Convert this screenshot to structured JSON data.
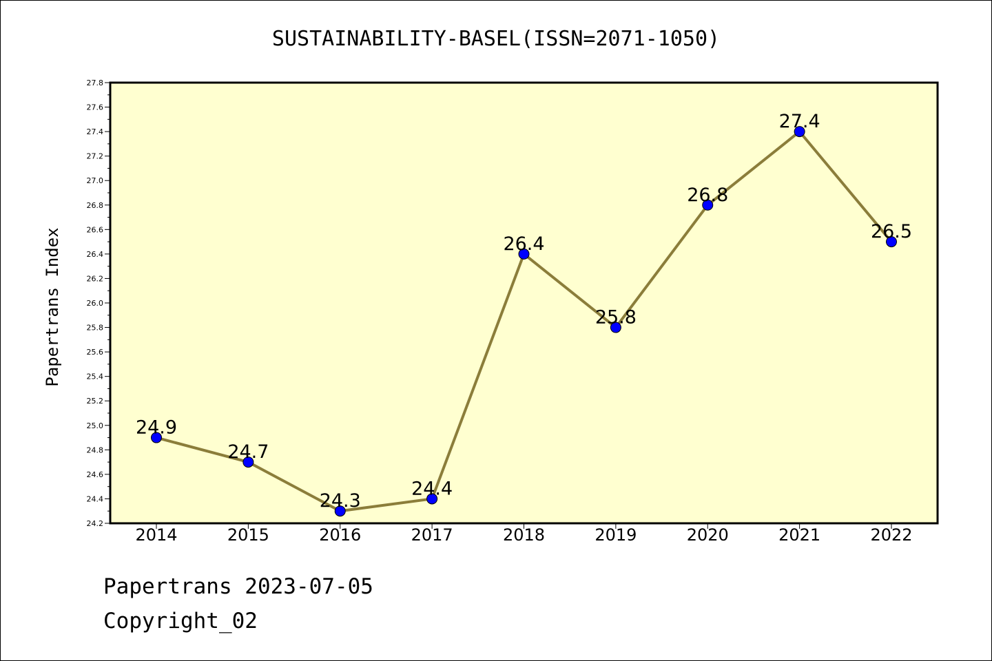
{
  "chart_data": {
    "type": "line",
    "title": "SUSTAINABILITY-BASEL(ISSN=2071-1050)",
    "xlabel": "",
    "ylabel": "Papertrans Index",
    "categories": [
      "2014",
      "2015",
      "2016",
      "2017",
      "2018",
      "2019",
      "2020",
      "2021",
      "2022"
    ],
    "series": [
      {
        "values": [
          24.9,
          24.7,
          24.3,
          24.4,
          26.4,
          25.8,
          26.8,
          27.4,
          26.5
        ],
        "data_labels": [
          "24.9",
          "24.7",
          "24.3",
          "24.4",
          "26.4",
          "25.8",
          "26.8",
          "27.4",
          "26.5"
        ]
      }
    ],
    "ylim": [
      24.2,
      27.8
    ],
    "yticks": [
      "24.2",
      "24.4",
      "24.6",
      "24.8",
      "25.0",
      "25.2",
      "25.4",
      "25.6",
      "25.8",
      "26.0",
      "26.2",
      "26.4",
      "26.6",
      "26.8",
      "27.0",
      "27.2",
      "27.4",
      "27.6",
      "27.8"
    ],
    "grid": false,
    "legend": "none",
    "colors": {
      "plot_background": "#ffffd0",
      "line": "#8b7d3a",
      "marker": "#0000ff"
    }
  },
  "footer": {
    "line1": "Papertrans 2023-07-05",
    "line2": "Copyright_02"
  }
}
